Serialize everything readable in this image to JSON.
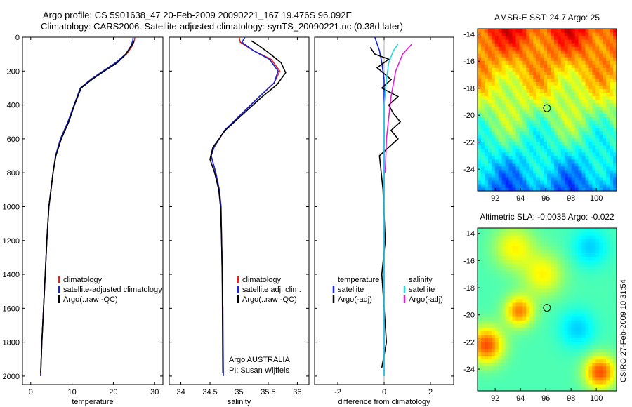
{
  "header": {
    "title_line1": "Argo profile: CS 5901638_47 20-Feb-2009 20090221_167 19.476S 96.092E",
    "title_line2": "Climatology: CARS2006. Satellite-adjusted climatology: synTS_20090221.nc (0.38d later)"
  },
  "timestamp": "CSIRO 27-Feb-2009 10:31:54",
  "colors": {
    "climatology": "#e8201c",
    "satellite": "#1424d8",
    "argo": "#000000",
    "salinity_satellite": "#27d8e0",
    "salinity_argo": "#e020d8"
  },
  "chart_data": [
    {
      "type": "line",
      "xlabel": "temperature",
      "ylabel": "",
      "xlim": [
        -2,
        32
      ],
      "ylim": [
        2050,
        0
      ],
      "y_inverted": true,
      "xticks": [
        0,
        10,
        20,
        30
      ],
      "yticks": [
        0,
        200,
        400,
        600,
        800,
        1000,
        1200,
        1400,
        1600,
        1800,
        2000
      ],
      "legend": [
        "climatology",
        "satellite-adjusted climatology",
        "Argo(..raw -QC)"
      ],
      "legend_position": "lower-right",
      "series": [
        {
          "name": "climatology",
          "color": "#e8201c",
          "x": [
            25.2,
            25.1,
            24.6,
            23.2,
            20.8,
            17.5,
            14.5,
            12.0,
            10.5,
            9.0,
            7.2,
            6.0,
            5.4,
            4.9,
            4.4,
            3.9,
            3.5,
            3.1,
            2.7,
            2.4
          ],
          "y": [
            0,
            20,
            50,
            100,
            150,
            200,
            250,
            300,
            400,
            500,
            600,
            700,
            800,
            900,
            1000,
            1200,
            1400,
            1600,
            1800,
            2000
          ]
        },
        {
          "name": "satellite-adjusted climatology",
          "color": "#1424d8",
          "x": [
            24.8,
            24.7,
            24.3,
            23.0,
            20.6,
            17.5,
            14.5,
            12.0,
            10.5,
            9.0,
            7.2,
            6.0,
            5.4,
            4.9,
            4.4,
            3.9,
            3.5,
            3.1,
            2.7,
            2.4
          ],
          "y": [
            0,
            20,
            50,
            100,
            150,
            200,
            250,
            300,
            400,
            500,
            600,
            700,
            800,
            900,
            1000,
            1200,
            1400,
            1600,
            1800,
            2000
          ]
        },
        {
          "name": "Argo(..raw -QC)",
          "color": "#000000",
          "x": [
            25.0,
            24.9,
            24.4,
            23.0,
            21.0,
            17.8,
            14.8,
            12.2,
            10.6,
            9.2,
            7.4,
            6.1,
            5.4,
            4.9,
            4.4,
            3.9,
            3.5,
            3.1,
            2.7,
            2.4
          ],
          "y": [
            20,
            30,
            50,
            100,
            150,
            200,
            250,
            300,
            400,
            500,
            600,
            700,
            800,
            900,
            1000,
            1200,
            1400,
            1600,
            1800,
            1980
          ]
        }
      ]
    },
    {
      "type": "line",
      "xlabel": "salinity",
      "ylabel": "",
      "xlim": [
        33.8,
        36.2
      ],
      "ylim": [
        2050,
        0
      ],
      "y_inverted": true,
      "xticks": [
        34,
        34.5,
        35,
        35.5,
        36
      ],
      "annotation": [
        "Argo AUSTRALIA",
        "PI: Susan Wijffels"
      ],
      "legend": [
        "climatology",
        "satellite adj. clim.",
        "Argo(..raw -QC)"
      ],
      "legend_position": "lower-right",
      "series": [
        {
          "name": "climatology",
          "color": "#e8201c",
          "x": [
            35.0,
            35.02,
            35.25,
            35.55,
            35.7,
            35.6,
            35.35,
            35.05,
            34.75,
            34.57,
            34.52,
            34.6,
            34.66,
            34.69,
            34.7,
            34.71,
            34.72,
            34.72
          ],
          "y": [
            0,
            30,
            80,
            130,
            200,
            270,
            350,
            450,
            550,
            650,
            700,
            800,
            900,
            1000,
            1200,
            1400,
            1600,
            1800
          ]
        },
        {
          "name": "satellite adj. clim.",
          "color": "#1424d8",
          "x": [
            35.1,
            35.05,
            35.25,
            35.52,
            35.67,
            35.6,
            35.35,
            35.05,
            34.75,
            34.57,
            34.52,
            34.6,
            34.66,
            34.69,
            34.7,
            34.71,
            34.72,
            34.73
          ],
          "y": [
            0,
            30,
            80,
            130,
            200,
            270,
            350,
            450,
            550,
            650,
            700,
            800,
            900,
            1000,
            1200,
            1400,
            1600,
            2000
          ]
        },
        {
          "name": "Argo(..raw -QC)",
          "color": "#000000",
          "x": [
            35.2,
            35.3,
            35.5,
            35.72,
            35.8,
            35.65,
            35.4,
            35.08,
            34.76,
            34.55,
            34.5,
            34.58,
            34.65,
            34.68,
            34.7,
            34.71,
            34.72
          ],
          "y": [
            20,
            40,
            90,
            150,
            210,
            280,
            350,
            450,
            550,
            650,
            720,
            800,
            900,
            1000,
            1200,
            1400,
            1980
          ]
        }
      ]
    },
    {
      "type": "line",
      "xlabel": "difference from climatology",
      "ylabel": "",
      "xlim": [
        -3,
        3
      ],
      "ylim": [
        2050,
        0
      ],
      "y_inverted": true,
      "xticks": [
        -2,
        0,
        2
      ],
      "legend_temperature": [
        "temperature",
        "satellite",
        "Argo(-adj)"
      ],
      "legend_salinity": [
        "salinity",
        "satellite",
        "Argo(-adj)"
      ],
      "legend_position": "lower-center",
      "series": [
        {
          "name": "temperature satellite",
          "color": "#1424d8",
          "x": [
            -0.4,
            -0.3,
            -0.2,
            -0.1,
            0,
            0,
            0,
            0
          ],
          "y": [
            0,
            40,
            80,
            150,
            250,
            400,
            800,
            2000
          ]
        },
        {
          "name": "temperature Argo(-adj)",
          "color": "#000000",
          "x": [
            -0.6,
            -0.4,
            0.2,
            -0.3,
            0.3,
            -0.1,
            0.6,
            0.2,
            0.4,
            0.7,
            0.3,
            0.6,
            -0.2,
            -0.05,
            0.05,
            -0.1,
            0.1,
            -0.1
          ],
          "y": [
            60,
            100,
            130,
            180,
            250,
            300,
            350,
            400,
            450,
            500,
            550,
            600,
            700,
            900,
            1200,
            1400,
            1800,
            1950
          ]
        },
        {
          "name": "salinity satellite",
          "color": "#27d8e0",
          "x": [
            0.6,
            0.4,
            0.2,
            0.1,
            0,
            0,
            0
          ],
          "y": [
            40,
            80,
            150,
            250,
            400,
            800,
            2000
          ]
        },
        {
          "name": "salinity Argo(-adj)",
          "color": "#e020d8",
          "x": [
            1.2,
            0.8,
            0.5,
            0.3,
            0.1,
            0.05
          ],
          "y": [
            40,
            100,
            200,
            350,
            600,
            800
          ]
        }
      ]
    },
    {
      "type": "heatmap",
      "title": "AMSR-E SST: 24.7 Argo: 25",
      "xlim": [
        90.6,
        101.6
      ],
      "ylim": [
        -25.6,
        -13.6
      ],
      "xticks": [
        92,
        94,
        96,
        98,
        100
      ],
      "yticks": [
        -14,
        -16,
        -18,
        -20,
        -22,
        -24
      ],
      "marker": {
        "lon": 96.092,
        "lat": -19.476
      }
    },
    {
      "type": "heatmap",
      "title": "Altimetric SLA: -0.0035 Argo: -0.022",
      "xlim": [
        90.6,
        101.6
      ],
      "ylim": [
        -25.6,
        -13.6
      ],
      "xticks": [
        92,
        94,
        96,
        98,
        100
      ],
      "yticks": [
        -14,
        -16,
        -18,
        -20,
        -22,
        -24
      ],
      "marker": {
        "lon": 96.092,
        "lat": -19.476
      }
    }
  ]
}
